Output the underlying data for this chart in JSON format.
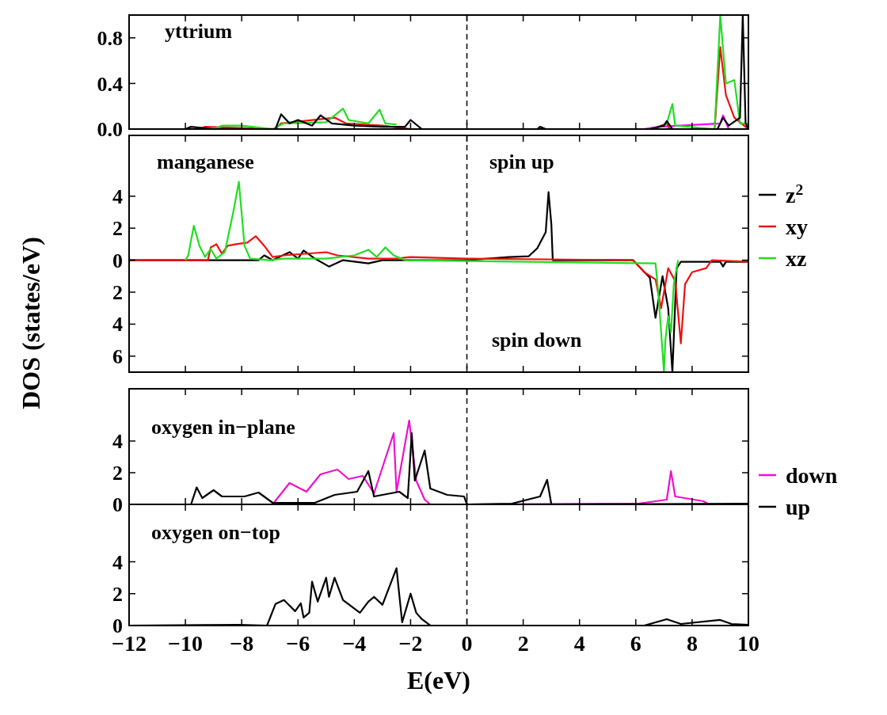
{
  "chart_data": [
    {
      "type": "line",
      "annotations": [
        "yttrium"
      ],
      "xlim": [
        -12,
        10
      ],
      "xticks": [
        -12,
        -10,
        -8,
        -6,
        -4,
        -2,
        0,
        2,
        4,
        6,
        8,
        10
      ],
      "ylim": [
        0,
        1
      ],
      "yticks": [
        {
          "value": 0,
          "label": "0.0"
        },
        {
          "value": 0.4,
          "label": "0.4"
        },
        {
          "value": 0.8,
          "label": "0.8"
        }
      ],
      "tick_labels": "y",
      "grid": false,
      "legend": false,
      "ref_lines": [
        {
          "axis": "x",
          "value": 0,
          "line_style": "dashed",
          "color": "#000000"
        }
      ],
      "series": [
        {
          "color": "#ff00ff",
          "x": [
            6.3,
            6.8,
            9.0,
            9.1,
            9.3
          ],
          "values": [
            0,
            0.02,
            0.05,
            0.12,
            0
          ]
        },
        {
          "color": "#ee1111",
          "x": [
            -9.5,
            -9.3,
            -6.8,
            -6.6,
            -4.7,
            -4.3,
            -3,
            -2,
            6.6,
            7.1,
            7.2,
            8.8,
            9.0,
            9.2,
            9.5,
            10
          ],
          "values": [
            0,
            0.02,
            0,
            0.05,
            0.1,
            0.05,
            0.03,
            0,
            0,
            0.05,
            0,
            0,
            0.72,
            0.3,
            0.1,
            0
          ]
        },
        {
          "color": "#22dd22",
          "x": [
            -9,
            -8.7,
            -8,
            -6.9,
            -6.5,
            -5,
            -4.4,
            -4.2,
            -3.5,
            -3.1,
            -2.9,
            -2.5,
            -2.3,
            6.9,
            7.1,
            7.3,
            7.4,
            8.8,
            9.0,
            9.2,
            9.5,
            9.7,
            10
          ],
          "values": [
            0,
            0.03,
            0.03,
            0,
            0.05,
            0.06,
            0.18,
            0.08,
            0.05,
            0.17,
            0.05,
            0.04,
            null,
            0.02,
            0.05,
            0.22,
            0.03,
            0,
            1.0,
            0.4,
            0.43,
            0.05,
            0.05
          ]
        },
        {
          "color": "#000000",
          "x": [
            -10,
            -9.8,
            -9,
            -6.8,
            -6.6,
            -6.3,
            -6.0,
            -5.5,
            -5.2,
            -4.8,
            -4,
            -3,
            -2.2,
            -2.0,
            -1.6,
            2.5,
            2.6,
            2.8,
            6.5,
            7.0,
            7.1,
            7.3,
            8.9,
            9.1,
            9.3,
            9.7,
            9.8,
            9.9,
            10
          ],
          "values": [
            0,
            0.02,
            0,
            0,
            0.13,
            0.05,
            0.08,
            0.03,
            0.12,
            0.05,
            0.03,
            0.02,
            0.02,
            0.08,
            0,
            0,
            0.02,
            0,
            0,
            0.03,
            0.07,
            0,
            0,
            0.1,
            0.03,
            0.1,
            1.0,
            0.05,
            0
          ]
        }
      ]
    },
    {
      "type": "line",
      "ylabel": "DOS (states/eV)",
      "annotations": [
        "manganese",
        "spin up",
        "spin down"
      ],
      "xlim": [
        -12,
        10
      ],
      "xticks": [
        -12,
        -10,
        -8,
        -6,
        -4,
        -2,
        0,
        2,
        4,
        6,
        8,
        10
      ],
      "ylim": [
        -7,
        7.8
      ],
      "yticks": [
        {
          "value": -6,
          "label": "6"
        },
        {
          "value": -4,
          "label": "4"
        },
        {
          "value": -2,
          "label": "2"
        },
        0,
        2,
        4
      ],
      "tick_labels": "y",
      "grid": false,
      "legend": "right",
      "ref_lines": [
        {
          "axis": "x",
          "value": 0,
          "line_style": "dashed",
          "color": "#000000"
        }
      ],
      "series": [
        {
          "name": "z$^{2}$",
          "color": "#000000",
          "x": [
            -12,
            -7.4,
            -7.2,
            -6.9,
            -6.3,
            -6.0,
            -5.8,
            -5.4,
            -4.9,
            -4.4,
            -3.5,
            -3.0,
            0,
            1.5,
            2.2,
            2.5,
            2.8,
            2.9,
            3.0,
            3.05,
            5.9,
            6.5,
            6.7,
            6.95,
            7.15,
            7.3,
            7.45,
            7.6,
            9.0,
            9.1,
            9.2,
            10
          ],
          "values": [
            0,
            0,
            0.3,
            0,
            0.5,
            0.1,
            0.6,
            0.1,
            -0.4,
            0,
            -0.2,
            0,
            0,
            0.2,
            0.25,
            0.75,
            1.75,
            4.25,
            2.25,
            0,
            0,
            -1.1,
            -3.6,
            -1,
            -3,
            -7,
            -0.5,
            -0.1,
            -0.1,
            -0.4,
            -0.1,
            -0.1
          ]
        },
        {
          "name": "xy",
          "color": "#ee1111",
          "x": [
            -12,
            -9.2,
            -9.1,
            -8.9,
            -8.7,
            -8.5,
            -8.2,
            -7.8,
            -7.5,
            -7.2,
            -6.9,
            -6.5,
            -5.0,
            -4.6,
            -3.5,
            -2.5,
            -2,
            0,
            5.9,
            6.3,
            6.7,
            6.9,
            7.15,
            7.4,
            7.6,
            7.75,
            8.0,
            8.5,
            8.7,
            10
          ],
          "values": [
            0,
            0,
            0.8,
            1.0,
            0.4,
            0.9,
            1.0,
            1.1,
            1.5,
            0.9,
            0.2,
            0.3,
            0.5,
            0.3,
            0.1,
            0.1,
            0.2,
            0.1,
            0,
            -0.75,
            -1.2,
            -3,
            -0.5,
            -1.3,
            -5.2,
            -1.5,
            -0.75,
            -0.5,
            0,
            -0.1
          ]
        },
        {
          "name": "xz",
          "color": "#22dd22",
          "x": [
            -10,
            -9.9,
            -9.7,
            -9.5,
            -9.3,
            -9.1,
            -8.9,
            -8.6,
            -8.3,
            -8.1,
            -7.9,
            -7.7,
            -7.0,
            -6.5,
            -5,
            -4,
            -3.5,
            -3.2,
            -2.9,
            -2.6,
            -2.2,
            6.7,
            6.8,
            6.9,
            7.0,
            7.05,
            7.15,
            7.25,
            7.35,
            7.45,
            7.5
          ],
          "values": [
            0,
            0.3,
            2.15,
            0.9,
            0.2,
            0.7,
            0.1,
            0.5,
            3.0,
            4.9,
            0.9,
            0.1,
            0,
            0.1,
            0.1,
            0.3,
            0.65,
            0.2,
            0.8,
            0.3,
            0,
            -0.2,
            -2,
            -4.5,
            -7,
            -5,
            -3.5,
            -4.5,
            -1.5,
            -0.5,
            0
          ]
        }
      ]
    },
    {
      "type": "line",
      "annotations": [
        "oxygen in−plane"
      ],
      "xlim": [
        -12,
        10
      ],
      "xticks": [
        -12,
        -10,
        -8,
        -6,
        -4,
        -2,
        0,
        2,
        4,
        6,
        8,
        10
      ],
      "ylim": [
        0,
        7.3
      ],
      "yticks": [
        0,
        2,
        4
      ],
      "tick_labels": "y",
      "grid": false,
      "legend": "right",
      "ref_lines": [
        {
          "axis": "x",
          "value": 0,
          "line_style": "dashed",
          "color": "#000000"
        }
      ],
      "series": [
        {
          "name": "down",
          "color": "#ee11cc",
          "x": [
            -12,
            -6.9,
            -6.3,
            -5.7,
            -5.2,
            -4.6,
            -4.2,
            -3.7,
            -3.3,
            -2.6,
            -2.5,
            -2.05,
            -1.8,
            -1.5,
            -1.3,
            0,
            6.1,
            7.1,
            7.25,
            7.4,
            8.4,
            8.6,
            10
          ],
          "values": [
            0,
            0,
            1.35,
            0.8,
            1.9,
            2.2,
            1.6,
            1.8,
            0.7,
            4.5,
            0.8,
            5.3,
            1.5,
            0.3,
            0,
            0,
            0.05,
            0.3,
            2.1,
            0.5,
            0.2,
            0,
            0
          ]
        },
        {
          "name": "up",
          "color": "#000000",
          "x": [
            -12,
            -9.8,
            -9.6,
            -9.4,
            -9.0,
            -8.7,
            -7.9,
            -7.4,
            -6.9,
            -5.4,
            -4.7,
            -3.9,
            -3.5,
            -3.3,
            -2.4,
            -2.1,
            -1.96,
            -1.85,
            -1.5,
            -1.3,
            -0.7,
            -0.1,
            0,
            1.6,
            2.6,
            2.85,
            3.0,
            10
          ],
          "values": [
            0,
            0,
            1.07,
            0.4,
            0.9,
            0.5,
            0.5,
            0.75,
            0.1,
            0.1,
            0.6,
            0.8,
            2.1,
            0.5,
            0.8,
            0.4,
            4.5,
            1.5,
            3.4,
            1.0,
            0.6,
            0.5,
            0,
            0.05,
            0.5,
            1.55,
            0,
            0.05
          ]
        }
      ]
    },
    {
      "type": "line",
      "xlabel": "E(eV)",
      "annotations": [
        "oxygen on−top"
      ],
      "xlim": [
        -12,
        10
      ],
      "xticks": [
        {
          "value": -12,
          "label": "−12"
        },
        {
          "value": -10,
          "label": "−10"
        },
        {
          "value": -8,
          "label": "−8"
        },
        {
          "value": -6,
          "label": "−6"
        },
        {
          "value": -4,
          "label": "−4"
        },
        {
          "value": -2,
          "label": "−2"
        },
        0,
        2,
        4,
        6,
        8,
        10
      ],
      "ylim": [
        0,
        7.6
      ],
      "yticks": [
        0,
        2,
        4
      ],
      "grid": false,
      "legend": false,
      "ref_lines": [
        {
          "axis": "x",
          "value": 0,
          "line_style": "dashed",
          "color": "#000000"
        }
      ],
      "series": [
        {
          "color": "#000000",
          "x": [
            -12,
            -8.1,
            -7.1,
            -6.8,
            -6.5,
            -6.1,
            -5.9,
            -5.8,
            -5.6,
            -5.5,
            -5.3,
            -5.0,
            -4.9,
            -4.7,
            -4.4,
            -4.1,
            -3.8,
            -3.5,
            -3.3,
            -3.0,
            -2.5,
            -2.3,
            -2.0,
            -1.8,
            -1.6,
            -1.3,
            6.3,
            7.1,
            7.6,
            9.0,
            9.4,
            10
          ],
          "values": [
            0,
            0.05,
            0,
            1.35,
            1.6,
            0.9,
            1.4,
            0.5,
            0.8,
            2.75,
            1.5,
            3.0,
            1.8,
            3.0,
            1.6,
            1.2,
            0.8,
            1.5,
            1.8,
            1.3,
            3.6,
            0.2,
            2.0,
            0.8,
            0.4,
            0,
            0,
            0.4,
            0.1,
            0.35,
            0.1,
            0.05
          ]
        }
      ]
    }
  ]
}
